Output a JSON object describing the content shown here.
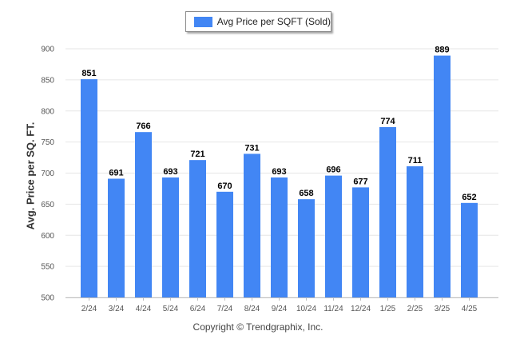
{
  "legend": {
    "label": "Avg Price per SQFT (Sold)"
  },
  "footer": {
    "text": "Copyright © Trendgraphix, Inc."
  },
  "colors": {
    "bar": "#4286f4",
    "grid": "#e6e6e6",
    "axis": "#bfbfbf"
  },
  "chart_data": {
    "type": "bar",
    "title": "",
    "xlabel": "",
    "ylabel": "Avg. Price per SQ. FT.",
    "categories": [
      "2/24",
      "3/24",
      "4/24",
      "5/24",
      "6/24",
      "7/24",
      "8/24",
      "9/24",
      "10/24",
      "11/24",
      "12/24",
      "1/25",
      "2/25",
      "3/25",
      "4/25"
    ],
    "series": [
      {
        "name": "Avg Price per SQFT (Sold)",
        "values": [
          851,
          691,
          766,
          693,
          721,
          670,
          731,
          693,
          658,
          696,
          677,
          774,
          711,
          889,
          652
        ]
      }
    ],
    "ylim": [
      500,
      900
    ],
    "yticks": [
      500,
      550,
      600,
      650,
      700,
      750,
      800,
      850,
      900
    ],
    "grid": true,
    "legend_position": "top-center"
  }
}
